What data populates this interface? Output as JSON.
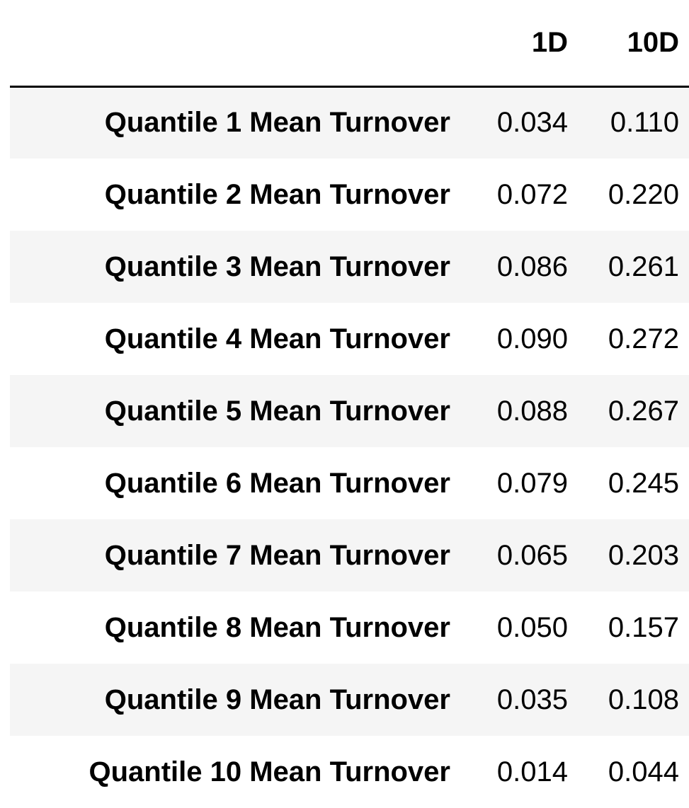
{
  "table": {
    "columns": [
      "",
      "1D",
      "10D"
    ],
    "rows": [
      {
        "label": "Quantile 1 Mean Turnover",
        "d1": "0.034",
        "d10": "0.110"
      },
      {
        "label": "Quantile 2 Mean Turnover",
        "d1": "0.072",
        "d10": "0.220"
      },
      {
        "label": "Quantile 3 Mean Turnover",
        "d1": "0.086",
        "d10": "0.261"
      },
      {
        "label": "Quantile 4 Mean Turnover",
        "d1": "0.090",
        "d10": "0.272"
      },
      {
        "label": "Quantile 5 Mean Turnover",
        "d1": "0.088",
        "d10": "0.267"
      },
      {
        "label": "Quantile 6 Mean Turnover",
        "d1": "0.079",
        "d10": "0.245"
      },
      {
        "label": "Quantile 7 Mean Turnover",
        "d1": "0.065",
        "d10": "0.203"
      },
      {
        "label": "Quantile 8 Mean Turnover",
        "d1": "0.050",
        "d10": "0.157"
      },
      {
        "label": "Quantile 9 Mean Turnover",
        "d1": "0.035",
        "d10": "0.108"
      },
      {
        "label": "Quantile 10 Mean Turnover",
        "d1": "0.014",
        "d10": "0.044"
      }
    ]
  },
  "colors": {
    "stripe": "#f5f5f5",
    "background": "#ffffff",
    "text": "#000000",
    "rule": "#000000"
  }
}
